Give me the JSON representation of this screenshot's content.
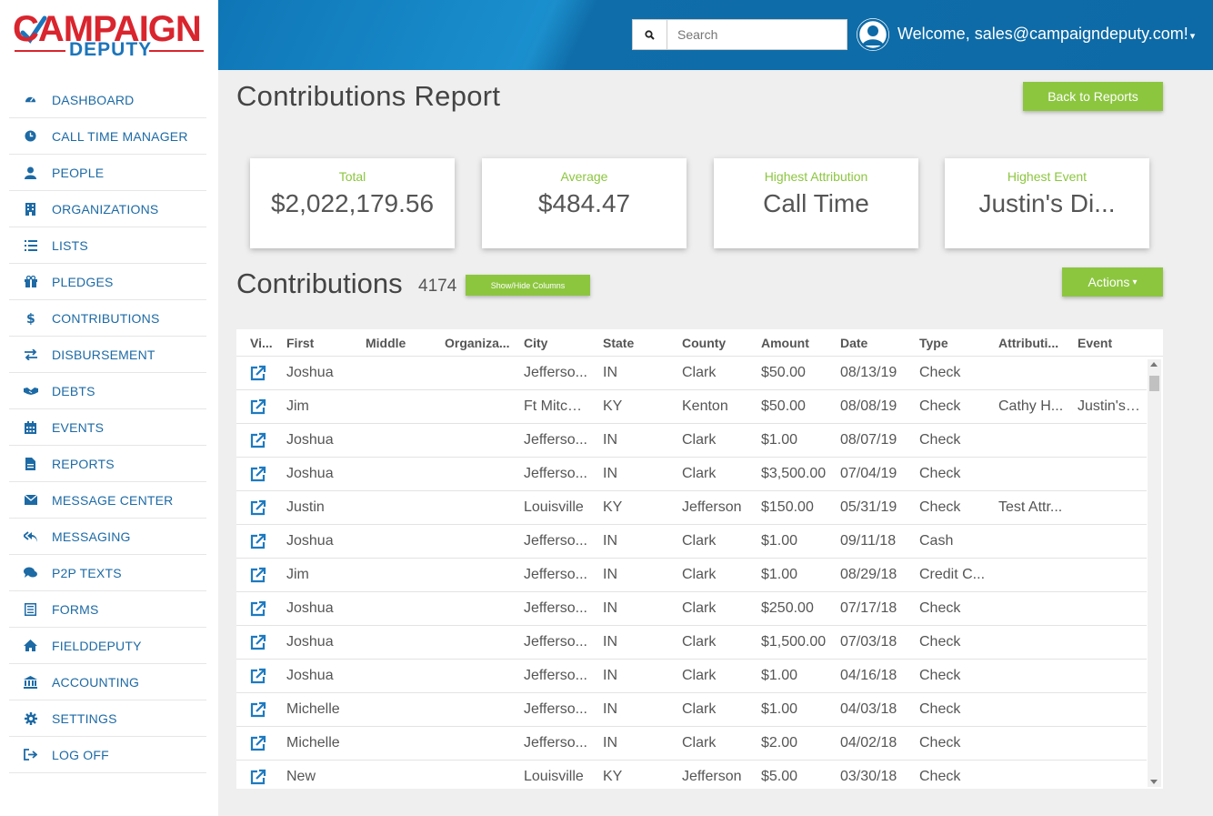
{
  "brand": {
    "line1": "CAMPAIGN",
    "line2": "DEPUTY"
  },
  "colors": {
    "accent_green": "#8cc63f",
    "nav_blue": "#1d6aa5",
    "header_blue": "#0d6aa6",
    "logo_red": "#d9252e"
  },
  "sidebar": {
    "items": [
      {
        "label": "DASHBOARD",
        "icon": "dashboard-icon"
      },
      {
        "label": "CALL TIME MANAGER",
        "icon": "clock-icon"
      },
      {
        "label": "PEOPLE",
        "icon": "user-icon"
      },
      {
        "label": "ORGANIZATIONS",
        "icon": "building-icon"
      },
      {
        "label": "LISTS",
        "icon": "list-icon"
      },
      {
        "label": "PLEDGES",
        "icon": "gift-icon"
      },
      {
        "label": "CONTRIBUTIONS",
        "icon": "dollar-icon"
      },
      {
        "label": "DISBURSEMENT",
        "icon": "exchange-icon"
      },
      {
        "label": "DEBTS",
        "icon": "handshake-icon"
      },
      {
        "label": "EVENTS",
        "icon": "calendar-icon"
      },
      {
        "label": "REPORTS",
        "icon": "file-icon"
      },
      {
        "label": "MESSAGE CENTER",
        "icon": "envelope-icon"
      },
      {
        "label": "MESSAGING",
        "icon": "reply-all-icon"
      },
      {
        "label": "P2P TEXTS",
        "icon": "comments-icon"
      },
      {
        "label": "FORMS",
        "icon": "form-icon"
      },
      {
        "label": "FIELDDEPUTY",
        "icon": "home-icon"
      },
      {
        "label": "ACCOUNTING",
        "icon": "bank-icon"
      },
      {
        "label": "SETTINGS",
        "icon": "gear-icon"
      },
      {
        "label": "LOG OFF",
        "icon": "sign-out-icon"
      }
    ]
  },
  "header": {
    "search_placeholder": "Search",
    "welcome": "Welcome, sales@campaigndeputy.com!",
    "welcome_caret": "▾"
  },
  "page": {
    "title": "Contributions Report",
    "back_button": "Back to Reports"
  },
  "stats": [
    {
      "title": "Total",
      "value": "$2,022,179.56"
    },
    {
      "title": "Average",
      "value": "$484.47"
    },
    {
      "title": "Highest Attribution",
      "value": "Call Time"
    },
    {
      "title": "Highest Event",
      "value": "Justin's Di..."
    }
  ],
  "contributions": {
    "title": "Contributions",
    "count": "4174",
    "show_hide_label": "Show/Hide Columns",
    "actions_label": "Actions",
    "actions_caret": "▾",
    "columns": [
      "Vi...",
      "First",
      "Middle",
      "Organiza...",
      "City",
      "State",
      "County",
      "Amount",
      "Date",
      "Type",
      "Attributi...",
      "Event"
    ],
    "rows": [
      [
        "Joshua",
        "",
        "",
        "Jefferso...",
        "IN",
        "Clark",
        "$50.00",
        "08/13/19",
        "Check",
        "",
        ""
      ],
      [
        "Jim",
        "",
        "",
        "Ft Mitchell",
        "KY",
        "Kenton",
        "$50.00",
        "08/08/19",
        "Check",
        "Cathy H...",
        "Justin's D..."
      ],
      [
        "Joshua",
        "",
        "",
        "Jefferso...",
        "IN",
        "Clark",
        "$1.00",
        "08/07/19",
        "Check",
        "",
        ""
      ],
      [
        "Joshua",
        "",
        "",
        "Jefferso...",
        "IN",
        "Clark",
        "$3,500.00",
        "07/04/19",
        "Check",
        "",
        ""
      ],
      [
        "Justin",
        "",
        "",
        "Louisville",
        "KY",
        "Jefferson",
        "$150.00",
        "05/31/19",
        "Check",
        "Test Attr...",
        ""
      ],
      [
        "Joshua",
        "",
        "",
        "Jefferso...",
        "IN",
        "Clark",
        "$1.00",
        "09/11/18",
        "Cash",
        "",
        ""
      ],
      [
        "Jim",
        "",
        "",
        "Jefferso...",
        "IN",
        "Clark",
        "$1.00",
        "08/29/18",
        "Credit C...",
        "",
        ""
      ],
      [
        "Joshua",
        "",
        "",
        "Jefferso...",
        "IN",
        "Clark",
        "$250.00",
        "07/17/18",
        "Check",
        "",
        ""
      ],
      [
        "Joshua",
        "",
        "",
        "Jefferso...",
        "IN",
        "Clark",
        "$1,500.00",
        "07/03/18",
        "Check",
        "",
        ""
      ],
      [
        "Joshua",
        "",
        "",
        "Jefferso...",
        "IN",
        "Clark",
        "$1.00",
        "04/16/18",
        "Check",
        "",
        ""
      ],
      [
        "Michelle",
        "",
        "",
        "Jefferso...",
        "IN",
        "Clark",
        "$1.00",
        "04/03/18",
        "Check",
        "",
        ""
      ],
      [
        "Michelle",
        "",
        "",
        "Jefferso...",
        "IN",
        "Clark",
        "$2.00",
        "04/02/18",
        "Check",
        "",
        ""
      ],
      [
        "New",
        "",
        "",
        "Louisville",
        "KY",
        "Jefferson",
        "$5.00",
        "03/30/18",
        "Check",
        "",
        ""
      ]
    ]
  }
}
